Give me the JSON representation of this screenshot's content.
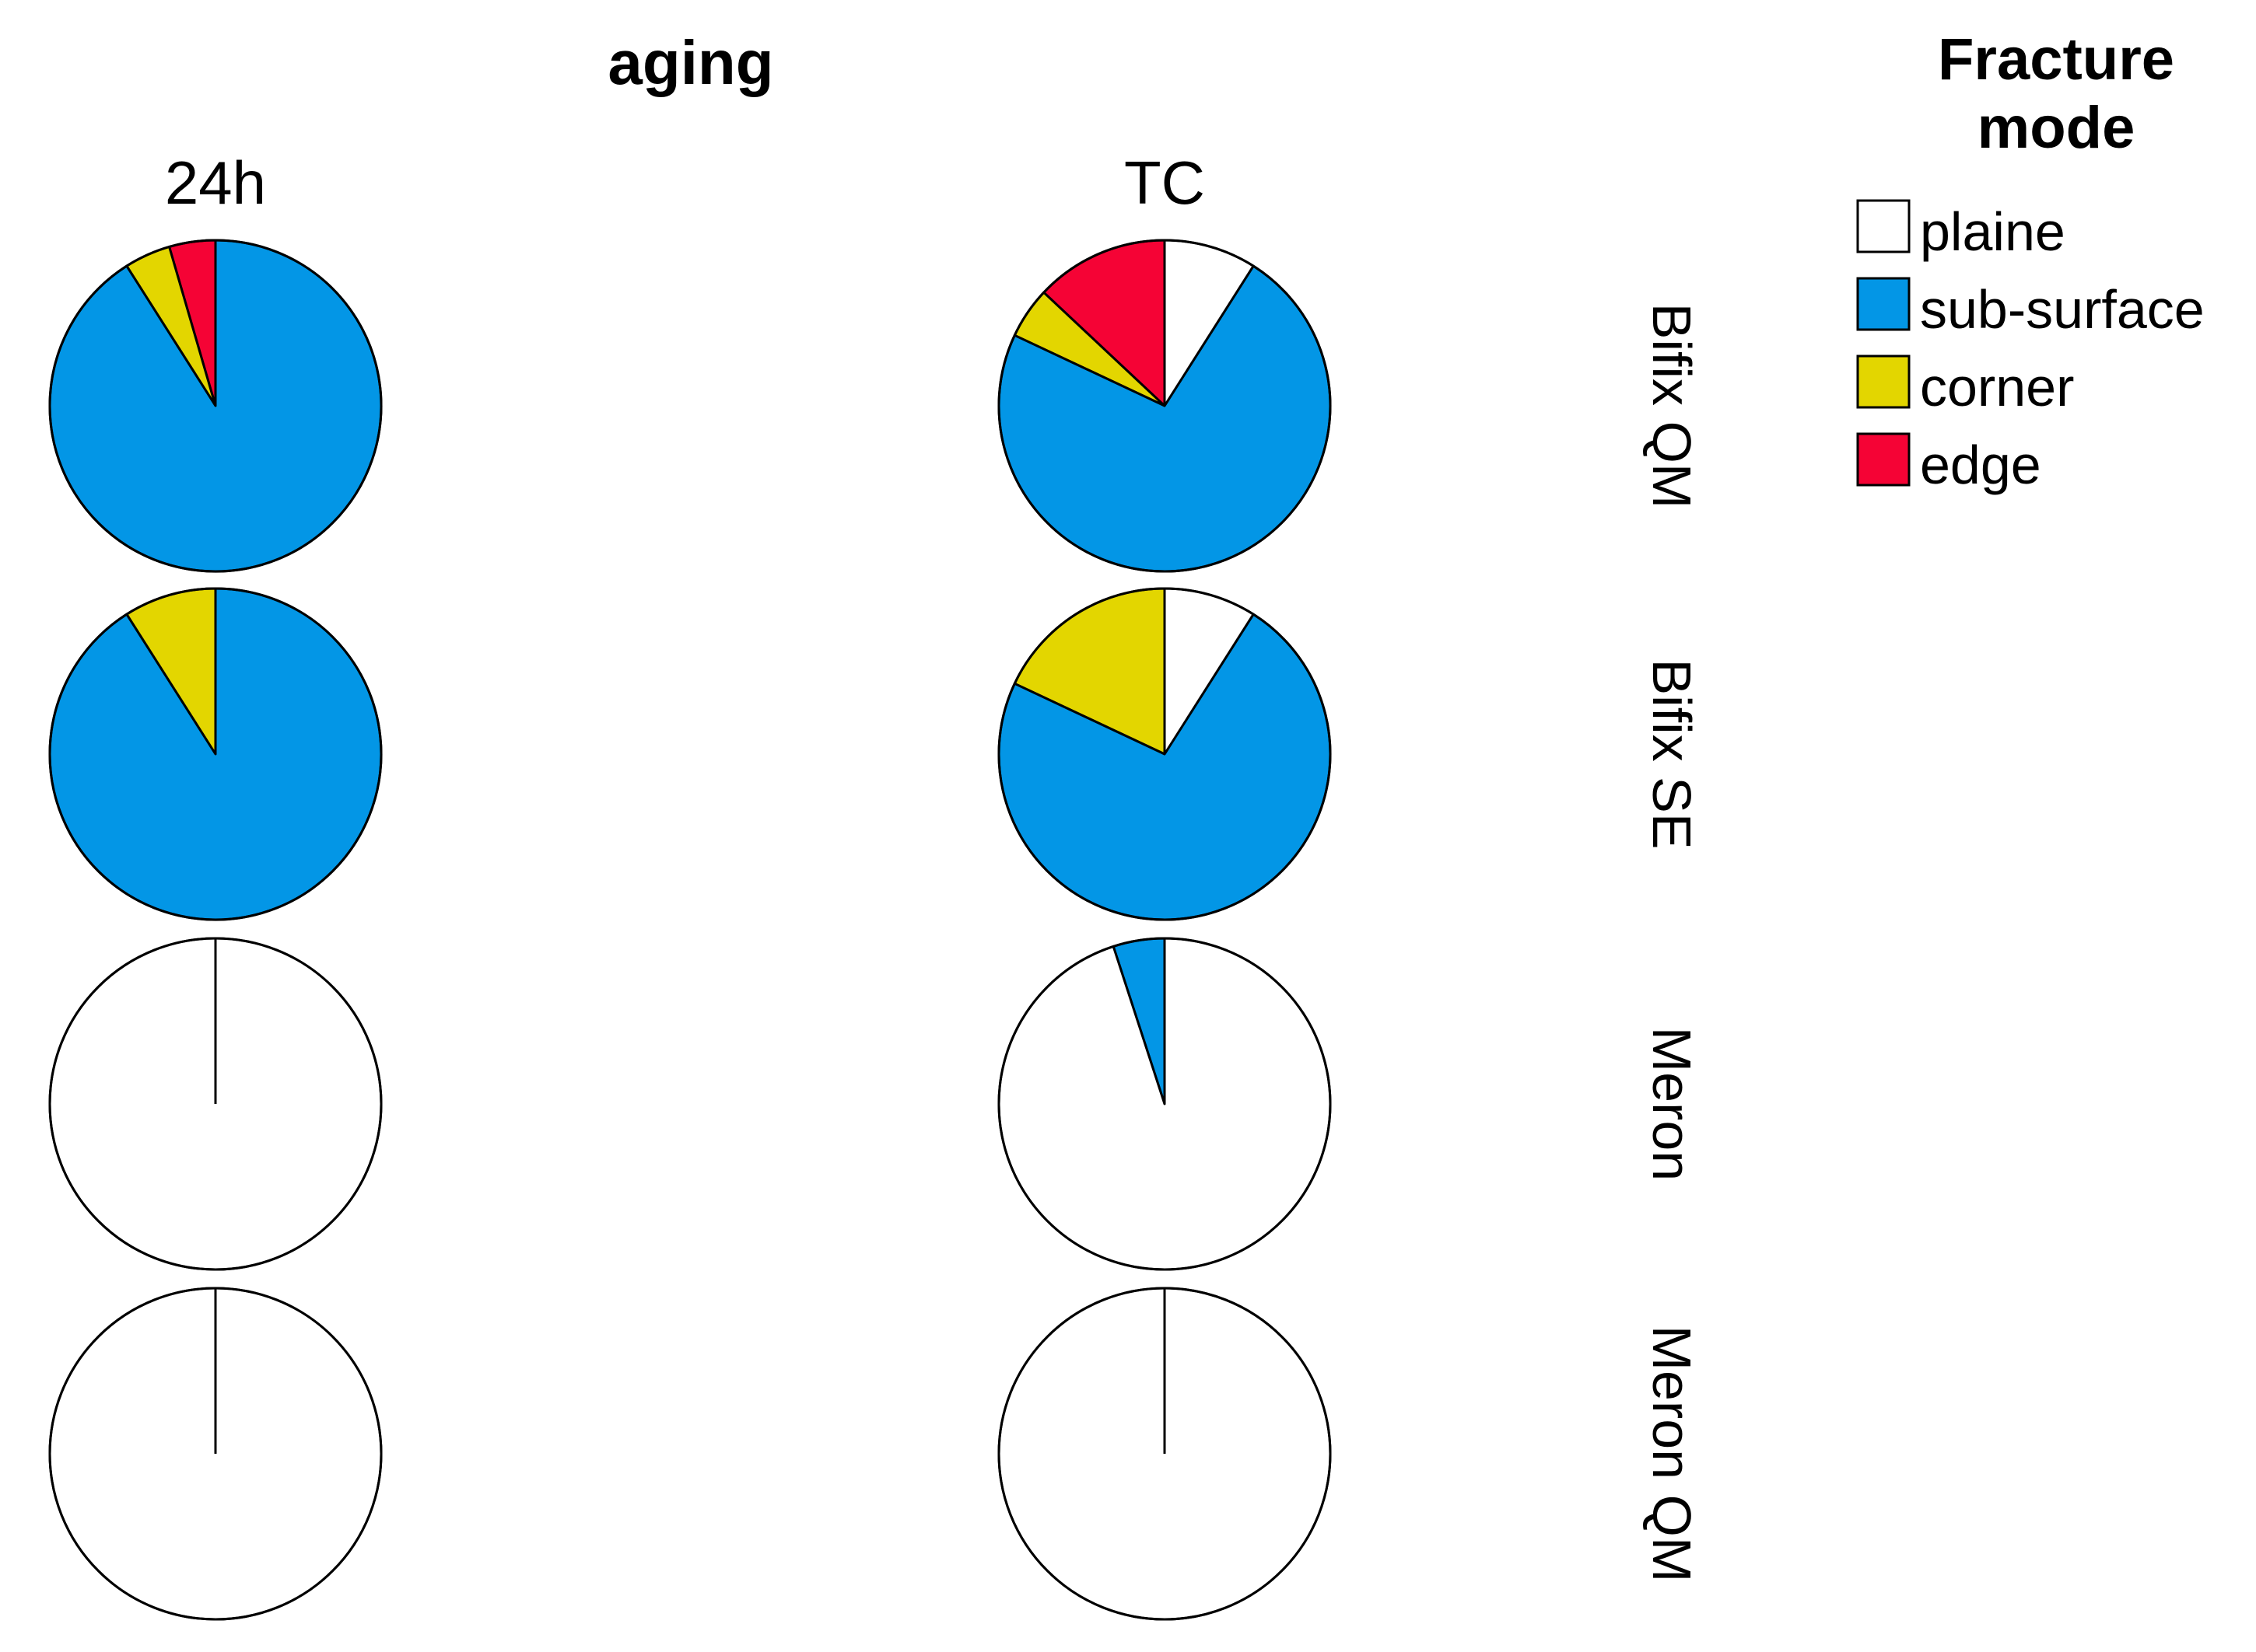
{
  "chart_data": {
    "type": "pie",
    "title": "aging",
    "columns": [
      "24h",
      "TC"
    ],
    "rows": [
      "Bifix QM",
      "Bifix SE",
      "Meron",
      "Meron QM"
    ],
    "categories": [
      "plaine",
      "sub-surface",
      "corner",
      "edge"
    ],
    "colors": {
      "plaine": "#ffffff",
      "sub-surface": "#0396e6",
      "corner": "#e3d600",
      "edge": "#f50335"
    },
    "legend": {
      "title_line1": "Fracture",
      "title_line2": "mode",
      "position": "top-right"
    },
    "panels": [
      {
        "row": "Bifix QM",
        "column": "24h",
        "values": {
          "plaine": 0,
          "sub-surface": 91,
          "corner": 4.5,
          "edge": 4.5
        }
      },
      {
        "row": "Bifix QM",
        "column": "TC",
        "values": {
          "plaine": 9,
          "sub-surface": 73,
          "corner": 5,
          "edge": 13
        }
      },
      {
        "row": "Bifix SE",
        "column": "24h",
        "values": {
          "plaine": 0,
          "sub-surface": 91,
          "corner": 9,
          "edge": 0
        }
      },
      {
        "row": "Bifix SE",
        "column": "TC",
        "values": {
          "plaine": 9,
          "sub-surface": 73,
          "corner": 18,
          "edge": 0
        }
      },
      {
        "row": "Meron",
        "column": "24h",
        "values": {
          "plaine": 100,
          "sub-surface": 0,
          "corner": 0,
          "edge": 0
        }
      },
      {
        "row": "Meron",
        "column": "TC",
        "values": {
          "plaine": 95,
          "sub-surface": 5,
          "corner": 0,
          "edge": 0
        }
      },
      {
        "row": "Meron QM",
        "column": "24h",
        "values": {
          "plaine": 100,
          "sub-surface": 0,
          "corner": 0,
          "edge": 0
        }
      },
      {
        "row": "Meron QM",
        "column": "TC",
        "values": {
          "plaine": 100,
          "sub-surface": 0,
          "corner": 0,
          "edge": 0
        }
      }
    ]
  }
}
